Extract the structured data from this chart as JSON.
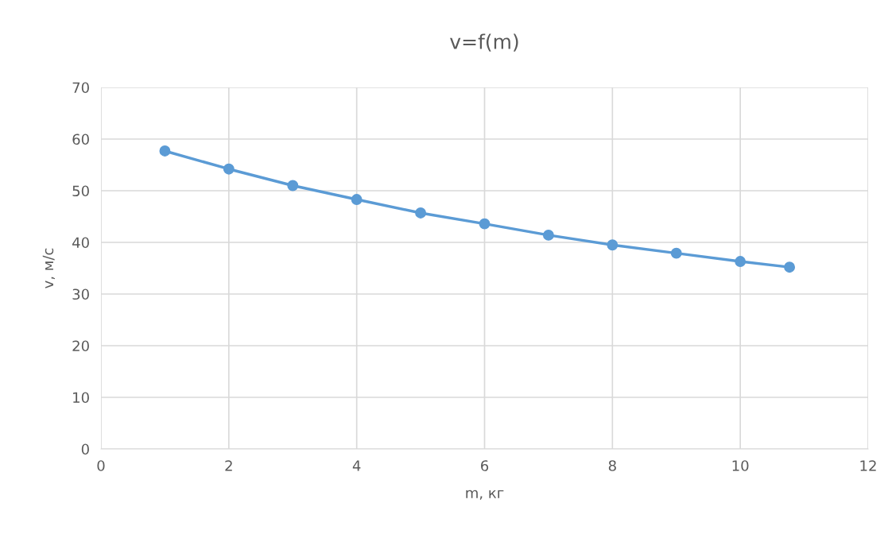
{
  "chart_data": {
    "type": "line",
    "title": "v=f(m)",
    "xlabel": "m, кг",
    "ylabel": "v, м/с",
    "x": [
      1,
      2,
      3,
      4,
      5,
      6,
      7,
      8,
      9,
      10,
      10.77
    ],
    "series": [
      {
        "color": "#5b9bd5",
        "values": [
          57.7,
          54.2,
          51.0,
          48.3,
          45.7,
          43.6,
          41.4,
          39.5,
          37.9,
          36.3,
          35.2
        ]
      }
    ],
    "xlim": [
      0,
      12
    ],
    "ylim": [
      0,
      70
    ],
    "xticks": [
      0,
      2,
      4,
      6,
      8,
      10,
      12
    ],
    "yticks": [
      0,
      10,
      20,
      30,
      40,
      50,
      60,
      70
    ],
    "grid": true,
    "marker": "circle",
    "line_style": "solid"
  }
}
